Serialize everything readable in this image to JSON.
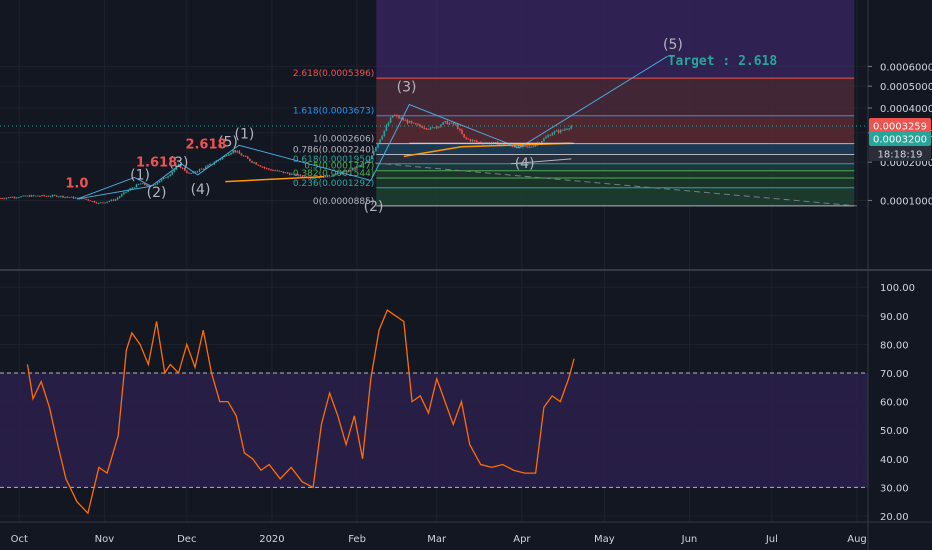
{
  "colors": {
    "background": "#131722",
    "grid": "#1e222d",
    "candle_up": "#26a69a",
    "candle_down": "#ef5350",
    "wave_line": "#4da8da",
    "rsi_line": "#ff6d00",
    "rsi_band": "#2a1f4a"
  },
  "chart_data": [
    {
      "type": "candlestick",
      "xlabel": "",
      "ylabel": "",
      "x_ticks": [
        "Oct",
        "Nov",
        "Dec",
        "2020",
        "Feb",
        "Mar",
        "Apr",
        "May",
        "Jun",
        "Jul",
        "Aug"
      ],
      "y_ticks": [
        "0.0001000",
        "0.0002000",
        "0.0003000",
        "0.0004000",
        "0.0005000",
        "0.0006000"
      ],
      "ylim": [
        8e-05,
        0.00064
      ],
      "price_axis_scale": "log-like",
      "last_price": "0.0003259",
      "reference_price": "0.0003200",
      "countdown": "18:18:19",
      "price_path": [
        [
          "2019-09-24",
          0.000105
        ],
        [
          "2019-10-05",
          0.00011
        ],
        [
          "2019-10-15",
          0.00011
        ],
        [
          "2019-10-25",
          0.000103
        ],
        [
          "2019-10-30",
          9.4e-05
        ],
        [
          "2019-11-05",
          0.000102
        ],
        [
          "2019-11-10",
          0.000125
        ],
        [
          "2019-11-14",
          0.00014
        ],
        [
          "2019-11-18",
          0.000133
        ],
        [
          "2019-11-24",
          0.00016
        ],
        [
          "2019-11-28",
          0.00019
        ],
        [
          "2019-12-02",
          0.000165
        ],
        [
          "2019-12-08",
          0.000185
        ],
        [
          "2019-12-14",
          0.000215
        ],
        [
          "2019-12-18",
          0.000238
        ],
        [
          "2019-12-24",
          0.000205
        ],
        [
          "2019-12-30",
          0.00018
        ],
        [
          "2020-01-08",
          0.000165
        ],
        [
          "2020-01-15",
          0.000155
        ],
        [
          "2020-01-22",
          0.00016
        ],
        [
          "2020-01-29",
          0.000175
        ],
        [
          "2020-02-05",
          0.0002
        ],
        [
          "2020-02-10",
          0.00029
        ],
        [
          "2020-02-14",
          0.00037
        ],
        [
          "2020-02-18",
          0.00035
        ],
        [
          "2020-02-22",
          0.00033
        ],
        [
          "2020-02-28",
          0.000315
        ],
        [
          "2020-03-04",
          0.00034
        ],
        [
          "2020-03-08",
          0.00033
        ],
        [
          "2020-03-11",
          0.00028
        ],
        [
          "2020-03-16",
          0.000265
        ],
        [
          "2020-03-22",
          0.000262
        ],
        [
          "2020-03-30",
          0.00025
        ],
        [
          "2020-04-04",
          0.000248
        ],
        [
          "2020-04-08",
          0.00027
        ],
        [
          "2020-04-12",
          0.0003
        ],
        [
          "2020-04-16",
          0.00031
        ],
        [
          "2020-04-19",
          0.000326
        ]
      ],
      "fib_levels": [
        {
          "label": "2.618(0.0005396)",
          "value": 0.0005396
        },
        {
          "label": "1.618(0.0003673)",
          "value": 0.0003673
        },
        {
          "label": "1(0.0002606)",
          "value": 0.0002606
        },
        {
          "label": "0.786(0.0002240)",
          "value": 0.000224
        },
        {
          "label": "0.618(0.0001950)",
          "value": 0.000195
        },
        {
          "label": "0.5(0.0001747)",
          "value": 0.0001747
        },
        {
          "label": "0.382(0.0001544)",
          "value": 0.0001544
        },
        {
          "label": "0.236(0.0001292)",
          "value": 0.0001292
        },
        {
          "label": "0(0.0000885)",
          "value": 8.85e-05
        }
      ],
      "wave_labels": [
        {
          "text": "(1)",
          "x": "2019-11-14",
          "y": 0.00015
        },
        {
          "text": "(2)",
          "x": "2019-11-20",
          "y": 0.000108
        },
        {
          "text": "(3)",
          "x": "2019-11-28",
          "y": 0.000185
        },
        {
          "text": "(4)",
          "x": "2019-12-06",
          "y": 0.000115
        },
        {
          "text": "(5)",
          "x": "2019-12-16",
          "y": 0.00025
        },
        {
          "text": "(1)",
          "x": "2019-12-22",
          "y": 0.000278
        },
        {
          "text": "(2)",
          "x": "2020-02-07",
          "y": 7.8e-05
        },
        {
          "text": "(3)",
          "x": "2020-02-19",
          "y": 0.000475
        },
        {
          "text": "(4)",
          "x": "2020-04-02",
          "y": 0.000183
        },
        {
          "text": "(5)",
          "x": "2020-05-26",
          "y": 0.000695
        }
      ],
      "fib_annotations": [
        {
          "text": "1.0",
          "x": "2019-10-22",
          "y": 0.00013
        },
        {
          "text": "1.618",
          "x": "2019-11-20",
          "y": 0.000187
        },
        {
          "text": "2.618",
          "x": "2019-12-08",
          "y": 0.000244
        }
      ],
      "target_label": "Target : 2.618",
      "wave_path": [
        [
          "2019-10-22",
          0.000103
        ],
        [
          "2019-11-12",
          0.000156
        ],
        [
          "2019-11-18",
          0.000133
        ],
        [
          "2019-11-29",
          0.000195
        ],
        [
          "2019-12-05",
          0.000163
        ],
        [
          "2019-12-20",
          0.000255
        ],
        [
          "2020-02-06",
          0.000148
        ],
        [
          "2020-02-20",
          0.000415
        ],
        [
          "2020-03-31",
          0.000246
        ],
        [
          "2020-05-24",
          0.000655
        ]
      ]
    },
    {
      "type": "line",
      "name": "",
      "ylim": [
        14,
        100
      ],
      "y_ticks": [
        "20.00",
        "30.00",
        "40.00",
        "50.00",
        "60.00",
        "70.00",
        "80.00",
        "90.00",
        "100.00"
      ],
      "bands": [
        30,
        70
      ],
      "x": [
        "2019-10-04",
        "2019-10-06",
        "2019-10-09",
        "2019-10-12",
        "2019-10-15",
        "2019-10-18",
        "2019-10-22",
        "2019-10-26",
        "2019-10-30",
        "2019-11-02",
        "2019-11-06",
        "2019-11-09",
        "2019-11-11",
        "2019-11-14",
        "2019-11-17",
        "2019-11-20",
        "2019-11-23",
        "2019-11-25",
        "2019-11-28",
        "2019-12-01",
        "2019-12-04",
        "2019-12-07",
        "2019-12-10",
        "2019-12-13",
        "2019-12-16",
        "2019-12-19",
        "2019-12-22",
        "2019-12-25",
        "2019-12-28",
        "2019-12-31",
        "2020-01-04",
        "2020-01-08",
        "2020-01-12",
        "2020-01-16",
        "2020-01-19",
        "2020-01-22",
        "2020-01-25",
        "2020-01-28",
        "2020-01-31",
        "2020-02-03",
        "2020-02-06",
        "2020-02-09",
        "2020-02-12",
        "2020-02-15",
        "2020-02-18",
        "2020-02-21",
        "2020-02-24",
        "2020-02-27",
        "2020-03-01",
        "2020-03-04",
        "2020-03-07",
        "2020-03-10",
        "2020-03-13",
        "2020-03-17",
        "2020-03-21",
        "2020-03-25",
        "2020-03-29",
        "2020-04-02",
        "2020-04-06",
        "2020-04-09",
        "2020-04-12",
        "2020-04-15",
        "2020-04-18",
        "2020-04-20"
      ],
      "values": [
        73,
        61,
        67,
        58,
        45,
        33,
        25,
        21,
        37,
        35,
        48,
        78,
        84,
        80,
        73,
        88,
        70,
        73,
        70,
        80,
        72,
        85,
        70,
        60,
        60,
        55,
        42,
        40,
        36,
        38,
        33,
        37,
        32,
        30,
        52,
        63,
        55,
        45,
        55,
        40,
        68,
        85,
        92,
        90,
        88,
        60,
        62,
        56,
        68,
        60,
        52,
        60,
        45,
        38,
        37,
        38,
        36,
        35,
        35,
        58,
        62,
        60,
        68,
        75
      ]
    }
  ]
}
